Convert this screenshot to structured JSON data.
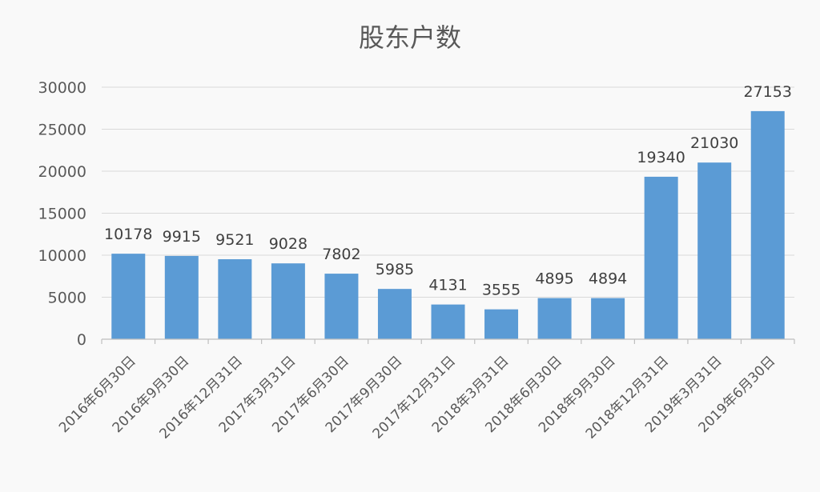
{
  "chart_data": {
    "type": "bar",
    "title": "股东户数",
    "categories": [
      "2016年6月30日",
      "2016年9月30日",
      "2016年12月31日",
      "2017年3月31日",
      "2017年6月30日",
      "2017年9月30日",
      "2017年12月31日",
      "2018年3月31日",
      "2018年6月30日",
      "2018年9月30日",
      "2018年12月31日",
      "2019年3月31日",
      "2019年6月30日"
    ],
    "values": [
      10178,
      9915,
      9521,
      9028,
      7802,
      5985,
      4131,
      3555,
      4895,
      4894,
      19340,
      21030,
      27153
    ],
    "xlabel": "",
    "ylabel": "",
    "ylim": [
      0,
      30000
    ],
    "yticks": [
      0,
      5000,
      10000,
      15000,
      20000,
      25000,
      30000
    ],
    "grid": true,
    "legend": "none",
    "data_labels": true,
    "colors": {
      "bar": "#5b9bd5",
      "grid": "#d9d9d9",
      "text": "#595959"
    }
  }
}
